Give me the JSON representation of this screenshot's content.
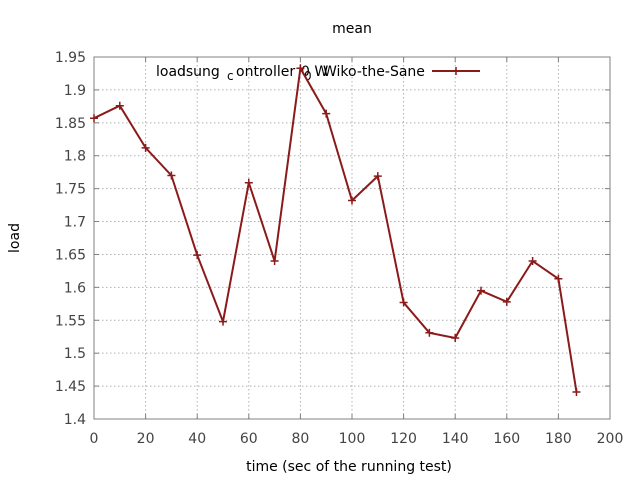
{
  "chart_data": {
    "type": "line",
    "title": "mean",
    "xlabel": "time (sec of the running test)",
    "ylabel": "load",
    "xlim": [
      0,
      200
    ],
    "ylim": [
      1.4,
      1.95
    ],
    "xticks": [
      0,
      20,
      40,
      60,
      80,
      100,
      120,
      140,
      160,
      180,
      200
    ],
    "yticks": [
      1.4,
      1.45,
      1.5,
      1.55,
      1.6,
      1.65,
      1.7,
      1.75,
      1.8,
      1.85,
      1.9,
      1.95
    ],
    "grid": true,
    "legend_position": "top",
    "colors": {
      "series": "#8b1a1a",
      "grid": "#b0b0b0",
      "axis": "#808080"
    },
    "series": [
      {
        "name": "loadlsung_controller_0 Wiko-the-Sane",
        "legend_parts": {
          "main": "load",
          "overlap_a": "lsung",
          "sub": "c",
          "rest": "ontroller",
          "sub2": "0",
          "tail": "Wiko-the-Sane",
          "overlap_b": "0 W"
        },
        "marker": "plus",
        "x": [
          0,
          10,
          20,
          30,
          40,
          50,
          60,
          70,
          80,
          90,
          100,
          110,
          120,
          130,
          140,
          150,
          160,
          170,
          180,
          187
        ],
        "y": [
          1.857,
          1.876,
          1.812,
          1.77,
          1.649,
          1.548,
          1.759,
          1.64,
          1.933,
          1.864,
          1.732,
          1.769,
          1.577,
          1.531,
          1.523,
          1.595,
          1.578,
          1.64,
          1.613,
          1.441
        ]
      }
    ]
  }
}
